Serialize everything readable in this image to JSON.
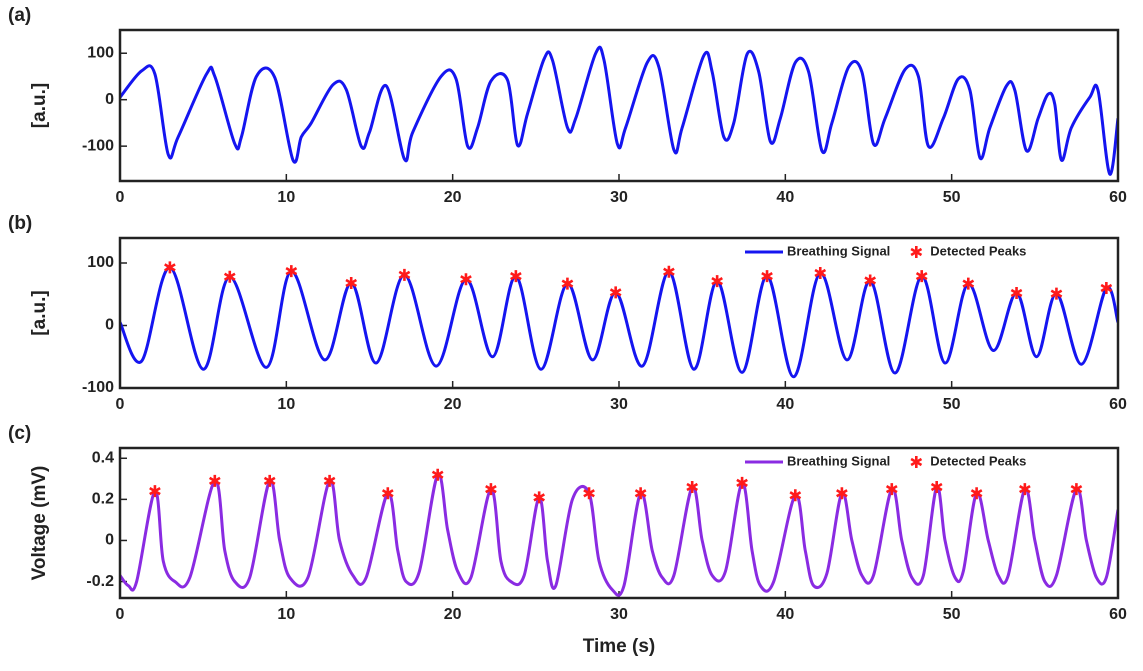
{
  "chart_data": [
    {
      "type": "line",
      "panel_label": "(a)",
      "ylabel": "[a.u.]",
      "xlim": [
        0,
        60
      ],
      "xticks": [
        0,
        10,
        20,
        30,
        40,
        50,
        60
      ],
      "ylim": [
        -175,
        150
      ],
      "yticks": [
        -100,
        0,
        100
      ],
      "series": [
        {
          "color": "#1515f0",
          "x": [
            0,
            1.3,
            2.1,
            2.9,
            3.5,
            5.2,
            5.7,
            6.9,
            7.3,
            8.2,
            9.3,
            10.4,
            10.9,
            11.5,
            12.8,
            13.6,
            14.5,
            15,
            16,
            17.1,
            17.6,
            19.3,
            20.2,
            20.9,
            21.5,
            22.3,
            23.3,
            23.9,
            24.5,
            25.5,
            26,
            26.9,
            27.4,
            28.6,
            29.1,
            29.9,
            30.4,
            31.7,
            32.4,
            33.3,
            33.8,
            35.1,
            35.6,
            36.3,
            36.9,
            37.7,
            38.4,
            39.1,
            39.7,
            40.6,
            41.4,
            42.2,
            42.8,
            43.8,
            44.6,
            45.3,
            46,
            47.2,
            48,
            48.6,
            49.5,
            50.4,
            51.1,
            51.7,
            52.3,
            53.3,
            53.8,
            54.5,
            55.2,
            55.8,
            56.2,
            56.6,
            57.2,
            58.3,
            58.8,
            59.5,
            60
          ],
          "values": [
            5,
            62,
            55,
            -118,
            -80,
            55,
            50,
            -95,
            -80,
            50,
            48,
            -130,
            -80,
            -50,
            32,
            22,
            -100,
            -70,
            30,
            -128,
            -70,
            50,
            45,
            -100,
            -60,
            40,
            42,
            -98,
            -30,
            88,
            85,
            -60,
            -40,
            100,
            85,
            -95,
            -60,
            80,
            70,
            -108,
            -60,
            95,
            60,
            -80,
            -50,
            98,
            60,
            -90,
            -40,
            80,
            60,
            -110,
            -50,
            70,
            60,
            -95,
            -40,
            65,
            50,
            -100,
            -40,
            45,
            20,
            -125,
            -60,
            30,
            20,
            -110,
            -40,
            12,
            -10,
            -130,
            -60,
            5,
            20,
            -160,
            -40
          ]
        }
      ]
    },
    {
      "type": "line",
      "panel_label": "(b)",
      "ylabel": "[a.u.]",
      "xlim": [
        0,
        60
      ],
      "xticks": [
        0,
        10,
        20,
        30,
        40,
        50,
        60
      ],
      "ylim": [
        -100,
        140
      ],
      "yticks": [
        -100,
        0,
        100
      ],
      "legend": "upper right",
      "series": [
        {
          "name": "Breathing Signal",
          "color": "#1515f0",
          "x": [
            0,
            1.3,
            3.0,
            5.0,
            6.6,
            8.8,
            10.3,
            12.3,
            13.9,
            15.4,
            17.1,
            19.0,
            20.8,
            22.4,
            23.8,
            25.3,
            26.9,
            28.4,
            29.8,
            31.4,
            33.0,
            34.5,
            35.9,
            37.4,
            38.9,
            40.5,
            42.1,
            43.7,
            45.1,
            46.6,
            48.2,
            49.6,
            51.0,
            52.5,
            53.9,
            55.1,
            56.3,
            57.8,
            59.3,
            60
          ],
          "values": [
            5,
            -57,
            93,
            -70,
            78,
            -67,
            87,
            -55,
            68,
            -60,
            81,
            -65,
            74,
            -50,
            79,
            -70,
            67,
            -55,
            53,
            -65,
            86,
            -70,
            71,
            -75,
            79,
            -82,
            84,
            -55,
            72,
            -76,
            79,
            -60,
            67,
            -40,
            52,
            -50,
            51,
            -62,
            60,
            5
          ]
        },
        {
          "name": "Detected Peaks",
          "color": "#ff1a1a",
          "marker": "star",
          "x": [
            3.0,
            6.6,
            10.3,
            13.9,
            17.1,
            20.8,
            23.8,
            26.9,
            29.8,
            33.0,
            35.9,
            38.9,
            42.1,
            45.1,
            48.2,
            51.0,
            53.9,
            56.3,
            59.3
          ],
          "values": [
            93,
            78,
            87,
            68,
            81,
            74,
            79,
            67,
            53,
            86,
            71,
            79,
            84,
            72,
            79,
            67,
            52,
            51,
            60
          ]
        }
      ]
    },
    {
      "type": "line",
      "panel_label": "(c)",
      "ylabel": "Voltage (mV)",
      "xlabel": "Time (s)",
      "xlim": [
        0,
        60
      ],
      "xticks": [
        0,
        10,
        20,
        30,
        40,
        50,
        60
      ],
      "ylim": [
        -0.28,
        0.45
      ],
      "yticks": [
        -0.2,
        0,
        0.2,
        0.4
      ],
      "legend": "upper right",
      "series": [
        {
          "name": "Breathing Signal",
          "color": "#8a2be2",
          "x": [
            0,
            0.5,
            1,
            2.1,
            2.6,
            3.3,
            4.2,
            5.7,
            6.3,
            6.9,
            7.8,
            9,
            9.6,
            10.2,
            11.3,
            12.6,
            13.2,
            14,
            14.8,
            16.1,
            16.7,
            17.2,
            18,
            19.1,
            19.7,
            20.3,
            21.1,
            22.3,
            22.9,
            23.5,
            24.3,
            25.2,
            25.7,
            26.2,
            27.2,
            28.2,
            28.8,
            29.6,
            30.3,
            31.3,
            32,
            32.6,
            33.3,
            34.4,
            35,
            35.6,
            36.4,
            37.4,
            38,
            38.5,
            39.3,
            40.6,
            41.2,
            41.7,
            42.5,
            43.4,
            44,
            44.6,
            45.3,
            46.4,
            47,
            47.6,
            48.3,
            49.1,
            49.6,
            50.2,
            50.7,
            51.5,
            52.2,
            52.8,
            53.4,
            54.4,
            55,
            55.6,
            56.3,
            57.5,
            58.1,
            58.7,
            59.3,
            60
          ],
          "values": [
            -0.17,
            -0.22,
            -0.2,
            0.24,
            -0.1,
            -0.2,
            -0.18,
            0.29,
            -0.05,
            -0.2,
            -0.18,
            0.29,
            0,
            -0.18,
            -0.18,
            0.29,
            0,
            -0.17,
            -0.18,
            0.23,
            -0.05,
            -0.2,
            -0.15,
            0.32,
            0.05,
            -0.15,
            -0.18,
            0.25,
            -0.1,
            -0.2,
            -0.17,
            0.21,
            -0.1,
            -0.22,
            0.2,
            0.23,
            -0.1,
            -0.24,
            -0.22,
            0.23,
            -0.05,
            -0.18,
            -0.17,
            0.26,
            0,
            -0.17,
            -0.15,
            0.28,
            -0.05,
            -0.22,
            -0.2,
            0.22,
            -0.05,
            -0.22,
            -0.16,
            0.23,
            0,
            -0.17,
            -0.17,
            0.25,
            0,
            -0.18,
            -0.17,
            0.26,
            0,
            -0.18,
            -0.15,
            0.23,
            0,
            -0.17,
            -0.17,
            0.25,
            0,
            -0.2,
            -0.17,
            0.25,
            0,
            -0.18,
            -0.18,
            0.15
          ]
        },
        {
          "name": "Detected Peaks",
          "color": "#ff1a1a",
          "marker": "star",
          "x": [
            2.1,
            5.7,
            9,
            12.6,
            16.1,
            19.1,
            22.3,
            25.2,
            28.2,
            31.3,
            34.4,
            37.4,
            40.6,
            43.4,
            46.4,
            49.1,
            51.5,
            54.4,
            57.5
          ],
          "values": [
            0.24,
            0.29,
            0.29,
            0.29,
            0.23,
            0.32,
            0.25,
            0.21,
            0.23,
            0.23,
            0.26,
            0.28,
            0.22,
            0.23,
            0.25,
            0.26,
            0.23,
            0.25,
            0.25
          ]
        }
      ]
    }
  ]
}
